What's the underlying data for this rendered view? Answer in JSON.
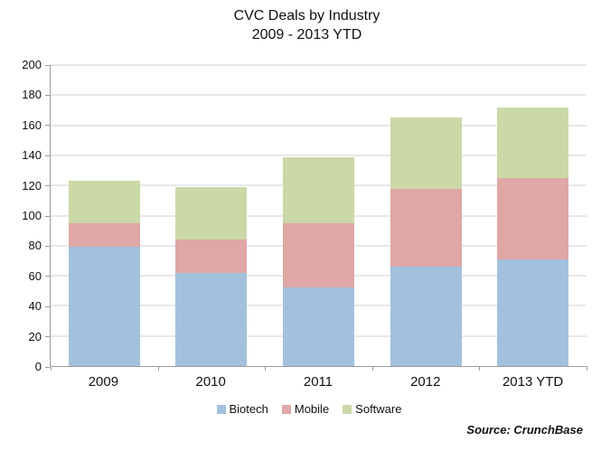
{
  "chart_data": {
    "type": "bar",
    "stacked": true,
    "title_line1": "CVC Deals by Industry",
    "title_line2": "2009 - 2013 YTD",
    "categories": [
      "2009",
      "2010",
      "2011",
      "2012",
      "2013 YTD"
    ],
    "series": [
      {
        "name": "Biotech",
        "color": "#A3C1DD",
        "values": [
          79,
          62,
          52,
          66,
          71
        ]
      },
      {
        "name": "Mobile",
        "color": "#DFA7A5",
        "values": [
          16,
          22,
          43,
          52,
          54
        ]
      },
      {
        "name": "Software",
        "color": "#CBD8A7",
        "values": [
          28,
          35,
          44,
          47,
          47
        ]
      }
    ],
    "stack_totals": [
      123,
      119,
      139,
      165,
      172
    ],
    "xlabel": "",
    "ylabel": "",
    "ylim": [
      0,
      200
    ],
    "ytick_step": 20,
    "grid": true,
    "legend_position": "bottom"
  },
  "source_note": "Source: CrunchBase",
  "colors": {
    "background": "#FFFFFF",
    "gridline": "#D2D2D2",
    "axis": "#9B9B9B",
    "text": "#111111"
  }
}
